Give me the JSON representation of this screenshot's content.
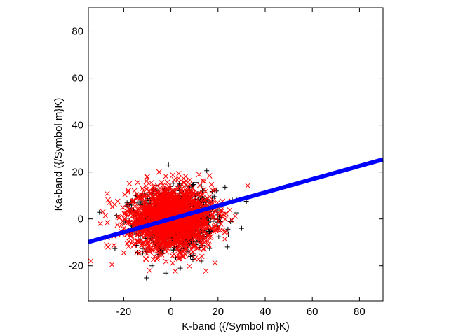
{
  "chart_data": {
    "type": "scatter",
    "title": "",
    "xlabel": "K-band ({/Symbol m}K)",
    "ylabel": "Ka-band ({/Symbol m}K)",
    "xlim": [
      -35,
      90
    ],
    "ylim": [
      -35,
      90
    ],
    "xticks": [
      -20,
      0,
      20,
      40,
      60,
      80
    ],
    "yticks": [
      -20,
      0,
      20,
      40,
      60,
      80
    ],
    "grid": false,
    "legend": "none",
    "series": [
      {
        "marker": "plus",
        "color": "#000000",
        "distribution": {
          "center": [
            2,
            0
          ],
          "sd": [
            8,
            6
          ],
          "count": 1400
        },
        "extremes": [
          [
            23.0,
            13.5
          ],
          [
            28.0,
            8.0
          ],
          [
            32.0,
            7.5
          ],
          [
            30.0,
            -4.0
          ],
          [
            24.0,
            -12.0
          ],
          [
            -1.0,
            23.0
          ],
          [
            4.0,
            -21.0
          ],
          [
            -8.0,
            -20.0
          ],
          [
            -14.0,
            10.0
          ],
          [
            -19.0,
            5.5
          ]
        ]
      },
      {
        "marker": "x",
        "color": "#ff0000",
        "distribution": {
          "center": [
            0,
            0
          ],
          "sd": [
            9,
            6.5
          ],
          "count": 1800
        },
        "extremes": [
          [
            -34.0,
            -18.0
          ],
          [
            -26.0,
            7.0
          ],
          [
            -25.0,
            -19.5
          ],
          [
            -20.0,
            -14.5
          ],
          [
            -9.0,
            -22.0
          ],
          [
            -18.0,
            12.0
          ],
          [
            -10.0,
            18.0
          ],
          [
            -5.0,
            20.0
          ],
          [
            14.0,
            16.0
          ],
          [
            -30.0,
            -2.0
          ],
          [
            -27.0,
            -8.0
          ]
        ]
      }
    ],
    "fit_line": {
      "color": "#0000ff",
      "slope": 0.282,
      "intercept": 0.0,
      "x_start": -35,
      "x_end": 90
    }
  }
}
